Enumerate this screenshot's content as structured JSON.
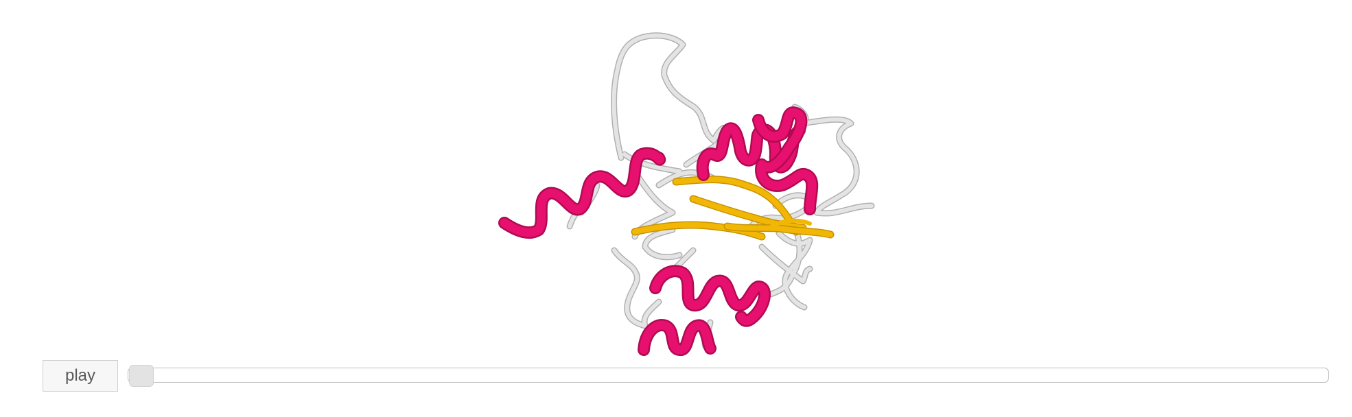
{
  "controls": {
    "play_label": "play",
    "progress": 0.0
  },
  "colors": {
    "helix": "#e8106e",
    "helix_dark": "#b00a52",
    "strand": "#f2b705",
    "coil": "#d9d9d9",
    "coil_shade": "#b5b5b5",
    "background": "#ffffff"
  },
  "viewer": {
    "structure": "protein-ribbon-cartoon"
  }
}
